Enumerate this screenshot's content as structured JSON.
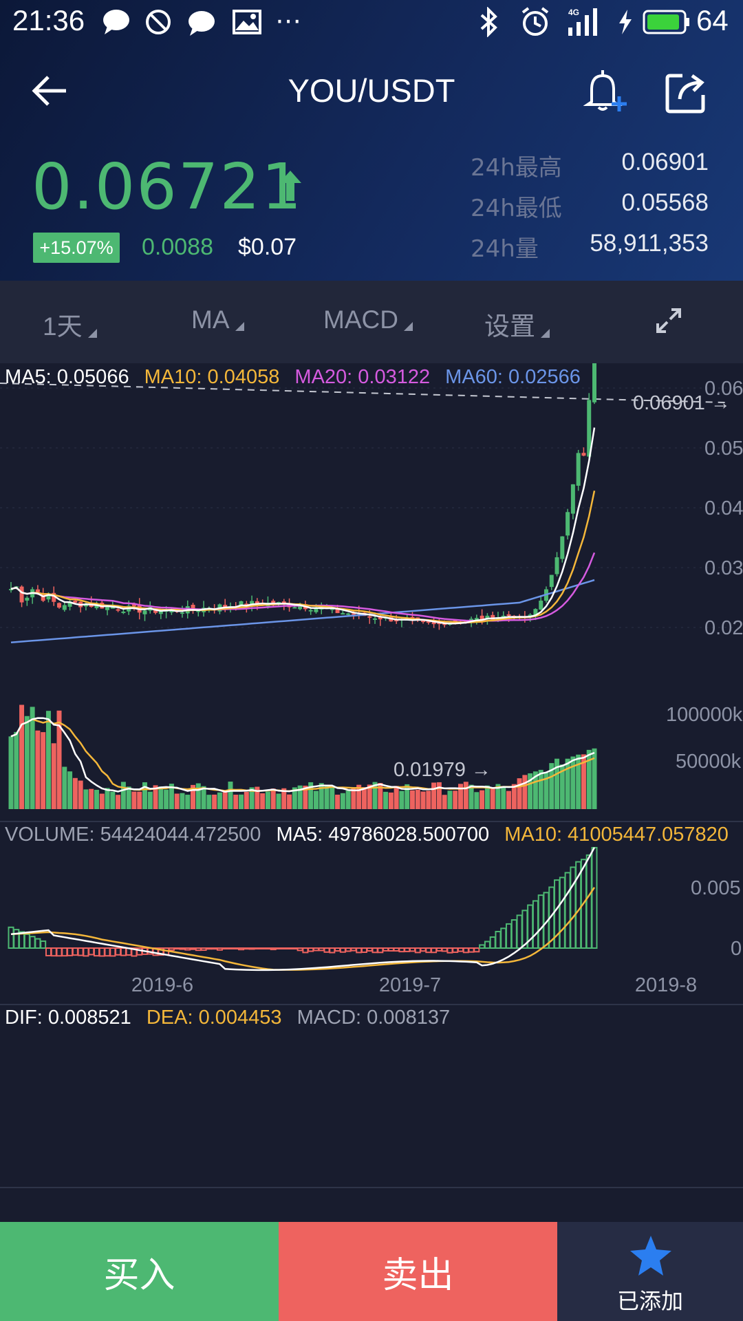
{
  "status_bar": {
    "time": "21:36",
    "battery": "64",
    "icons": [
      "chat-bubble-icon",
      "do-not-disturb-icon",
      "chat-bubble-icon",
      "image-icon",
      "more-dots-icon",
      "bluetooth-icon",
      "alarm-icon",
      "signal-4g-icon",
      "charging-icon",
      "battery-icon"
    ]
  },
  "header": {
    "title": "YOU/USDT",
    "price": "0.06721",
    "change_pct": "+15.07%",
    "change_abs": "0.0088",
    "usd_price": "$0.07",
    "stats": [
      {
        "label": "24h最高",
        "value": "0.06901"
      },
      {
        "label": "24h最低",
        "value": "0.05568"
      },
      {
        "label": "24h量",
        "value": "58,911,353"
      }
    ]
  },
  "toolbar": {
    "interval": "1天",
    "main_indicator": "MA",
    "sub_indicator": "MACD",
    "settings": "设置"
  },
  "legend": {
    "ma5": "MA5: 0.05066",
    "ma10": "MA10: 0.04058",
    "ma20": "MA20: 0.03122",
    "ma60": "MA60: 0.02566",
    "volume": "VOLUME: 54424044.472500",
    "vol_ma5": "MA5: 49786028.500700",
    "vol_ma10": "MA10: 41005447.057820",
    "dif": "DIF: 0.008521",
    "dea": "DEA: 0.004453",
    "macd": "MACD: 0.008137"
  },
  "colors": {
    "up": "#4db872",
    "down": "#ee635f",
    "ma5": "#ffffff",
    "ma10": "#f4b73a",
    "ma20": "#d65be0",
    "ma60": "#6b95e8",
    "buy_bg": "#4db872",
    "sell_bg": "#ee635f",
    "fav_star": "#2b7ef0"
  },
  "chart_data": {
    "type": "candlestick",
    "x_ticks": [
      "2019-6",
      "2019-7",
      "2019-8"
    ],
    "y_ticks": [
      "0.06",
      "0.05",
      "0.04",
      "0.03",
      "0.02"
    ],
    "high_marker": "0.06901 →",
    "low_marker": "0.01979 →",
    "volume_y_ticks": [
      "100000k",
      "50000k"
    ],
    "macd_y_ticks": [
      "0.005",
      "0"
    ],
    "ylim": [
      0.0175,
      0.07
    ]
  },
  "actions": {
    "buy": "买入",
    "sell": "卖出",
    "added": "已添加"
  }
}
